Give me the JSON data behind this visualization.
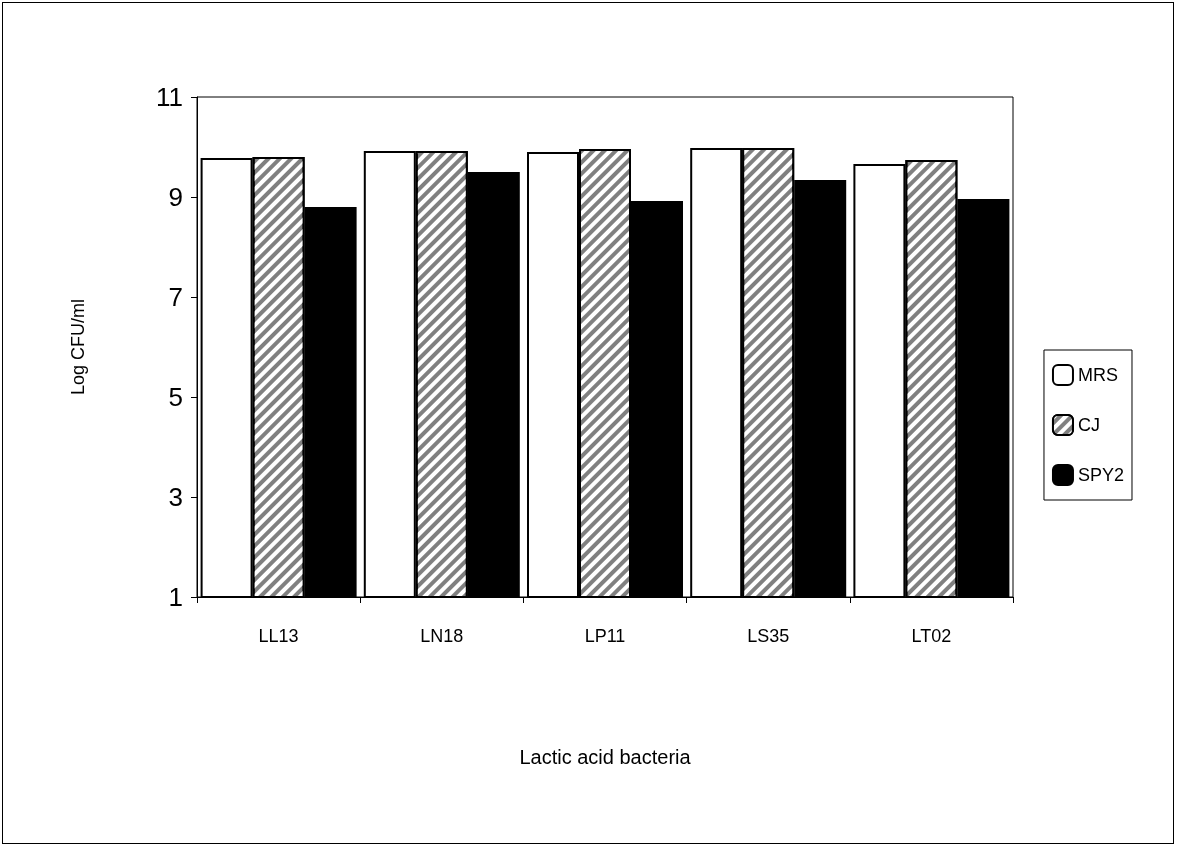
{
  "chart_data": {
    "type": "bar",
    "xlabel": "Lactic acid bacteria",
    "ylabel": "Log CFU/ml",
    "categories": [
      "LL13",
      "LN18",
      "LP11",
      "LS35",
      "LT02"
    ],
    "series": [
      {
        "name": "MRS",
        "color": "#ffffff",
        "values": [
          9.78,
          9.92,
          9.9,
          9.98,
          9.66
        ]
      },
      {
        "name": "CJ",
        "color": "#808080",
        "values": [
          9.8,
          9.92,
          9.96,
          9.98,
          9.74
        ]
      },
      {
        "name": "SPY2",
        "color": "#000000",
        "values": [
          8.8,
          9.5,
          8.92,
          9.34,
          8.96
        ]
      }
    ],
    "ylim": [
      1,
      11
    ],
    "yticks": [
      1,
      3,
      5,
      7,
      9,
      11
    ],
    "grid": false,
    "legend": "right"
  }
}
